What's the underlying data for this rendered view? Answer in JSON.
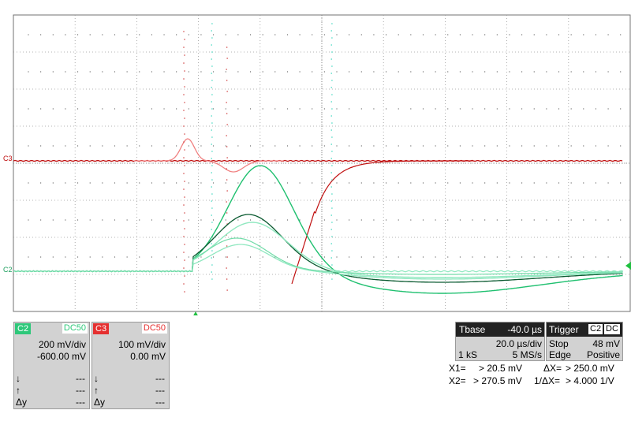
{
  "channels": [
    {
      "tag": "C2",
      "coupling": "DC50",
      "vdiv": "200 mV/div",
      "offset": "-600.00 mV",
      "rows": [
        {
          "sym": "↓",
          "val": "---"
        },
        {
          "sym": "↑",
          "val": "---"
        },
        {
          "sym": "Δy",
          "val": "---"
        }
      ],
      "color": "#2ec87a",
      "tagbg": "#2ec87a"
    },
    {
      "tag": "C3",
      "coupling": "DC50",
      "vdiv": "100 mV/div",
      "offset": "0.00 mV",
      "rows": [
        {
          "sym": "↓",
          "val": "---"
        },
        {
          "sym": "↑",
          "val": "---"
        },
        {
          "sym": "Δy",
          "val": "---"
        }
      ],
      "color": "#e53030",
      "tagbg": "#e53030"
    }
  ],
  "markers": {
    "c3": "C3",
    "c2": "C2"
  },
  "timebase": {
    "label": "Tbase",
    "delay": "-40.0 µs",
    "tdiv": "20.0 µs/div",
    "samples": "1 kS",
    "rate": "5 MS/s"
  },
  "trigger": {
    "label": "Trigger",
    "source": "C2",
    "coupling": "DC",
    "mode_label": "Stop",
    "level": "48 mV",
    "type_label": "Edge",
    "slope": "Positive"
  },
  "cursors": {
    "x1_label": "X1=",
    "x1_value": "> 20.5 mV",
    "dx_label": "ΔX=",
    "dx_value": "> 250.0 mV",
    "x2_label": "X2=",
    "x2_value": "> 270.5 mV",
    "inv_label": "1/ΔX=",
    "inv_value": "> 4.000 1/V"
  },
  "colors": {
    "grid": "#9a9a9a",
    "c3_dark": "#c01010",
    "c3_light": "#f08080",
    "c2_dark": "#0a5a30",
    "c2_mid": "#20c070",
    "c2_light": "#90e8c0",
    "cyan": "#40d8c0",
    "trigger": "#20c040"
  }
}
